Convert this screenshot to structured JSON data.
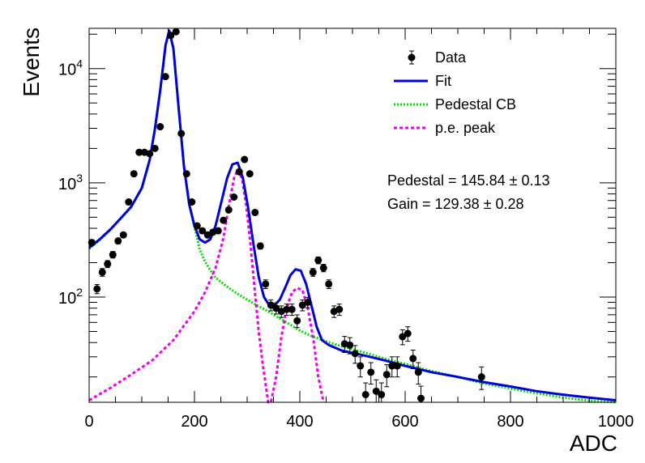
{
  "chart_data": {
    "type": "scatter",
    "xlabel": "ADC",
    "ylabel": "Events",
    "xlim": [
      0,
      1000
    ],
    "ylim": [
      12,
      22500
    ],
    "yscale": "log",
    "x_ticks": [
      0,
      200,
      400,
      600,
      800,
      1000
    ],
    "y_ticks": [
      {
        "value": 100,
        "base": "10",
        "exp": "2"
      },
      {
        "value": 1000,
        "base": "10",
        "exp": "3"
      },
      {
        "value": 10000,
        "base": "10",
        "exp": "4"
      }
    ],
    "grid": false,
    "legend": {
      "placement": "top-right",
      "entries": [
        {
          "label": "Data",
          "kind": "marker",
          "color": "#000000"
        },
        {
          "label": "Fit",
          "kind": "line",
          "color": "#0000dd"
        },
        {
          "label": "Pedestal CB",
          "kind": "dotted",
          "color": "#00dd00"
        },
        {
          "label": "p.e. peak",
          "kind": "dashed",
          "color": "#ee00ee"
        }
      ]
    },
    "annotations": [
      "Pedestal = 145.84 ± 0.13",
      "Gain = 129.38 ± 0.28"
    ],
    "series": [
      {
        "name": "Data",
        "points": [
          [
            5,
            300
          ],
          [
            15,
            118
          ],
          [
            25,
            165
          ],
          [
            35,
            195
          ],
          [
            45,
            235
          ],
          [
            55,
            310
          ],
          [
            65,
            350
          ],
          [
            75,
            680
          ],
          [
            85,
            1200
          ],
          [
            95,
            1850
          ],
          [
            105,
            1850
          ],
          [
            115,
            1800
          ],
          [
            125,
            2000
          ],
          [
            135,
            3100
          ],
          [
            145,
            8500
          ],
          [
            155,
            19500
          ],
          [
            165,
            21000
          ],
          [
            175,
            2700
          ],
          [
            185,
            1200
          ],
          [
            195,
            680
          ],
          [
            205,
            420
          ],
          [
            215,
            380
          ],
          [
            225,
            350
          ],
          [
            235,
            370
          ],
          [
            245,
            380
          ],
          [
            255,
            470
          ],
          [
            265,
            580
          ],
          [
            275,
            750
          ],
          [
            285,
            1250
          ],
          [
            295,
            1600
          ],
          [
            305,
            1200
          ],
          [
            315,
            550
          ],
          [
            325,
            280
          ],
          [
            335,
            130
          ],
          [
            345,
            85
          ],
          [
            355,
            80
          ],
          [
            365,
            75
          ],
          [
            375,
            78
          ],
          [
            385,
            78
          ],
          [
            395,
            62
          ],
          [
            405,
            85
          ],
          [
            415,
            90
          ],
          [
            425,
            165
          ],
          [
            435,
            210
          ],
          [
            445,
            180
          ],
          [
            455,
            130
          ],
          [
            465,
            75
          ],
          [
            475,
            78
          ],
          [
            485,
            39
          ],
          [
            495,
            38
          ],
          [
            505,
            32
          ],
          [
            515,
            25
          ],
          [
            525,
            14
          ],
          [
            535,
            22
          ],
          [
            545,
            15
          ],
          [
            555,
            14
          ],
          [
            565,
            21
          ],
          [
            575,
            25
          ],
          [
            585,
            25
          ],
          [
            595,
            45
          ],
          [
            605,
            48
          ],
          [
            615,
            29
          ],
          [
            625,
            22
          ],
          [
            630,
            13
          ],
          [
            745,
            20
          ]
        ]
      },
      {
        "name": "Fit",
        "points": [
          [
            0,
            270
          ],
          [
            20,
            320
          ],
          [
            40,
            390
          ],
          [
            60,
            490
          ],
          [
            80,
            620
          ],
          [
            100,
            900
          ],
          [
            115,
            1600
          ],
          [
            125,
            3000
          ],
          [
            135,
            6500
          ],
          [
            145,
            16000
          ],
          [
            152,
            21500
          ],
          [
            160,
            15000
          ],
          [
            170,
            4500
          ],
          [
            180,
            1400
          ],
          [
            190,
            650
          ],
          [
            200,
            420
          ],
          [
            210,
            320
          ],
          [
            220,
            300
          ],
          [
            230,
            320
          ],
          [
            240,
            420
          ],
          [
            250,
            650
          ],
          [
            262,
            1100
          ],
          [
            272,
            1450
          ],
          [
            282,
            1500
          ],
          [
            292,
            1100
          ],
          [
            302,
            600
          ],
          [
            312,
            290
          ],
          [
            322,
            150
          ],
          [
            332,
            100
          ],
          [
            342,
            85
          ],
          [
            352,
            85
          ],
          [
            362,
            95
          ],
          [
            372,
            120
          ],
          [
            382,
            155
          ],
          [
            392,
            175
          ],
          [
            402,
            170
          ],
          [
            412,
            130
          ],
          [
            422,
            85
          ],
          [
            432,
            55
          ],
          [
            442,
            42
          ],
          [
            455,
            38
          ],
          [
            480,
            34
          ],
          [
            520,
            31
          ],
          [
            560,
            28
          ],
          [
            600,
            25
          ],
          [
            650,
            22
          ],
          [
            700,
            20
          ],
          [
            750,
            18
          ],
          [
            800,
            16.5
          ],
          [
            850,
            15
          ],
          [
            900,
            14
          ],
          [
            950,
            13.2
          ],
          [
            1000,
            12.5
          ]
        ]
      },
      {
        "name": "Pedestal CB",
        "points": [
          [
            0,
            265
          ],
          [
            20,
            315
          ],
          [
            40,
            385
          ],
          [
            60,
            485
          ],
          [
            80,
            615
          ],
          [
            100,
            890
          ],
          [
            115,
            1580
          ],
          [
            125,
            2980
          ],
          [
            135,
            6450
          ],
          [
            145,
            15900
          ],
          [
            152,
            21300
          ],
          [
            160,
            14900
          ],
          [
            170,
            4450
          ],
          [
            180,
            1380
          ],
          [
            190,
            640
          ],
          [
            200,
            410
          ],
          [
            210,
            260
          ],
          [
            220,
            205
          ],
          [
            230,
            172
          ],
          [
            240,
            148
          ],
          [
            260,
            125
          ],
          [
            280,
            108
          ],
          [
            300,
            95
          ],
          [
            320,
            84
          ],
          [
            340,
            75
          ],
          [
            360,
            66
          ],
          [
            380,
            58
          ],
          [
            400,
            51
          ],
          [
            420,
            46
          ],
          [
            450,
            41
          ],
          [
            480,
            37
          ],
          [
            520,
            33
          ],
          [
            560,
            29
          ],
          [
            600,
            26
          ],
          [
            650,
            22.5
          ],
          [
            700,
            20
          ],
          [
            750,
            17.5
          ],
          [
            800,
            15.8
          ],
          [
            850,
            14.4
          ],
          [
            900,
            13.2
          ],
          [
            950,
            12.4
          ],
          [
            1000,
            11.8
          ]
        ]
      },
      {
        "name": "p.e. peak",
        "points": [
          [
            0,
            12.5
          ],
          [
            40,
            16
          ],
          [
            80,
            21
          ],
          [
            120,
            28
          ],
          [
            160,
            42
          ],
          [
            200,
            75
          ],
          [
            220,
            110
          ],
          [
            240,
            180
          ],
          [
            255,
            330
          ],
          [
            265,
            620
          ],
          [
            275,
            1100
          ],
          [
            282,
            1300
          ],
          [
            290,
            1100
          ],
          [
            298,
            650
          ],
          [
            306,
            300
          ],
          [
            314,
            120
          ],
          [
            322,
            50
          ],
          [
            330,
            25
          ],
          [
            340,
            12
          ],
          [
            345,
            12
          ],
          [
            355,
            20
          ],
          [
            365,
            45
          ],
          [
            375,
            80
          ],
          [
            385,
            110
          ],
          [
            395,
            120
          ],
          [
            405,
            115
          ],
          [
            415,
            80
          ],
          [
            425,
            45
          ],
          [
            435,
            20
          ],
          [
            445,
            12
          ]
        ]
      }
    ]
  }
}
